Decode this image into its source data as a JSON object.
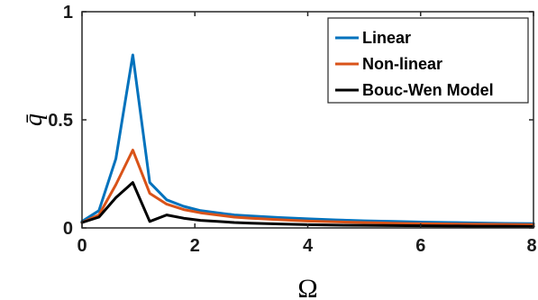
{
  "chart_data": {
    "type": "line",
    "xlabel": "Ω",
    "ylabel": "q̄",
    "xlim": [
      0,
      8
    ],
    "ylim": [
      0,
      1
    ],
    "xticks": [
      0,
      2,
      4,
      6,
      8
    ],
    "xtick_labels": [
      "0",
      "2",
      "4",
      "6",
      "8"
    ],
    "yticks": [
      0,
      0.5,
      1
    ],
    "ytick_labels": [
      "0",
      "0.5",
      "1"
    ],
    "grid": false,
    "legend_position": "top-right",
    "series": [
      {
        "name": "Linear",
        "color": "#0072BD",
        "x": [
          0,
          0.3,
          0.6,
          0.9,
          1.2,
          1.5,
          1.8,
          2.1,
          2.4,
          2.7,
          3.0,
          3.5,
          4.0,
          4.5,
          5.0,
          5.5,
          6.0,
          6.5,
          7.0,
          7.5,
          8.0
        ],
        "y": [
          0.03,
          0.08,
          0.32,
          0.8,
          0.21,
          0.13,
          0.1,
          0.08,
          0.07,
          0.06,
          0.055,
          0.048,
          0.042,
          0.037,
          0.033,
          0.03,
          0.027,
          0.025,
          0.023,
          0.021,
          0.02
        ]
      },
      {
        "name": "Non-linear",
        "color": "#D95319",
        "x": [
          0,
          0.3,
          0.6,
          0.9,
          1.2,
          1.5,
          1.8,
          2.1,
          2.4,
          2.7,
          3.0,
          3.5,
          4.0,
          4.5,
          5.0,
          5.5,
          6.0,
          6.5,
          7.0,
          7.5,
          8.0
        ],
        "y": [
          0.025,
          0.06,
          0.2,
          0.36,
          0.16,
          0.11,
          0.085,
          0.07,
          0.06,
          0.05,
          0.045,
          0.038,
          0.032,
          0.028,
          0.025,
          0.022,
          0.02,
          0.018,
          0.017,
          0.016,
          0.015
        ]
      },
      {
        "name": "Bouc-Wen Model",
        "color": "#000000",
        "x": [
          0,
          0.3,
          0.6,
          0.9,
          1.2,
          1.5,
          1.8,
          2.1,
          2.4,
          2.7,
          3.0,
          3.5,
          4.0,
          4.5,
          5.0,
          5.5,
          6.0,
          6.5,
          7.0,
          7.5,
          8.0
        ],
        "y": [
          0.025,
          0.05,
          0.14,
          0.21,
          0.03,
          0.06,
          0.045,
          0.035,
          0.03,
          0.025,
          0.022,
          0.018,
          0.015,
          0.013,
          0.012,
          0.011,
          0.01,
          0.009,
          0.008,
          0.008,
          0.007
        ]
      }
    ]
  }
}
